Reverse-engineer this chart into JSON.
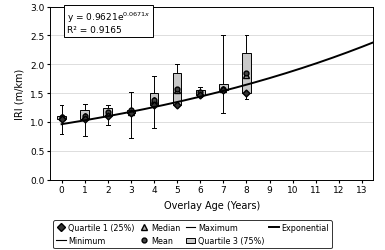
{
  "xlabel": "Overlay Age (Years)",
  "ylabel": "IRI (m/km)",
  "a": 0.9621,
  "b": 0.0671,
  "xlim": [
    -0.5,
    13.5
  ],
  "ylim": [
    0.0,
    3.0
  ],
  "xticks": [
    0,
    1,
    2,
    3,
    4,
    5,
    6,
    7,
    8,
    9,
    10,
    11,
    12,
    13
  ],
  "yticks": [
    0.0,
    0.5,
    1.0,
    1.5,
    2.0,
    2.5,
    3.0
  ],
  "ages": [
    0,
    1,
    2,
    3,
    4,
    5,
    6,
    7,
    8
  ],
  "q1": [
    1.05,
    1.05,
    1.1,
    1.15,
    1.3,
    1.3,
    1.47,
    1.55,
    1.5
  ],
  "q3": [
    1.1,
    1.2,
    1.25,
    1.2,
    1.5,
    1.85,
    1.55,
    1.65,
    2.2
  ],
  "median": [
    1.08,
    1.1,
    1.15,
    1.18,
    1.38,
    1.55,
    1.51,
    1.58,
    1.82
  ],
  "mean": [
    1.08,
    1.1,
    1.18,
    1.2,
    1.38,
    1.57,
    1.52,
    1.58,
    1.85
  ],
  "minimum": [
    0.8,
    0.75,
    0.95,
    0.72,
    0.9,
    1.28,
    1.43,
    1.15,
    1.4
  ],
  "maximum": [
    1.3,
    1.32,
    1.3,
    1.52,
    1.8,
    2.0,
    1.6,
    2.5,
    2.5
  ],
  "box_color": "#c8c8c8",
  "exp_line_color": "#000000",
  "bg_color": "#ffffff",
  "grid_color": "#d0d0d0",
  "eq_line1": "y = 0.9621e",
  "eq_sup": "0.0671x",
  "eq_line2": "R² = 0.9165"
}
